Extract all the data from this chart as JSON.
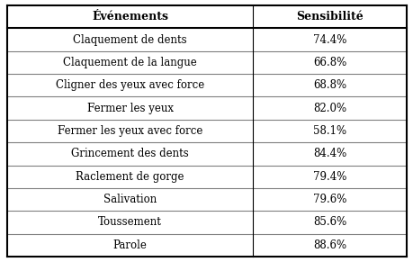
{
  "col1_header": "Événements",
  "col2_header": "Sensibilité",
  "rows": [
    [
      "Claquement de dents",
      "74.4%"
    ],
    [
      "Claquement de la langue",
      "66.8%"
    ],
    [
      "Cligner des yeux avec force",
      "68.8%"
    ],
    [
      "Fermer les yeux",
      "82.0%"
    ],
    [
      "Fermer les yeux avec force",
      "58.1%"
    ],
    [
      "Grincement des dents",
      "84.4%"
    ],
    [
      "Raclement de gorge",
      "79.4%"
    ],
    [
      "Salivation",
      "79.6%"
    ],
    [
      "Toussement",
      "85.6%"
    ],
    [
      "Parole",
      "88.6%"
    ]
  ],
  "header_fontsize": 9.0,
  "cell_fontsize": 8.5,
  "background_color": "#ffffff",
  "header_bg_color": "#ffffff",
  "line_color": "#000000",
  "text_color": "#000000",
  "col_split": 0.615
}
